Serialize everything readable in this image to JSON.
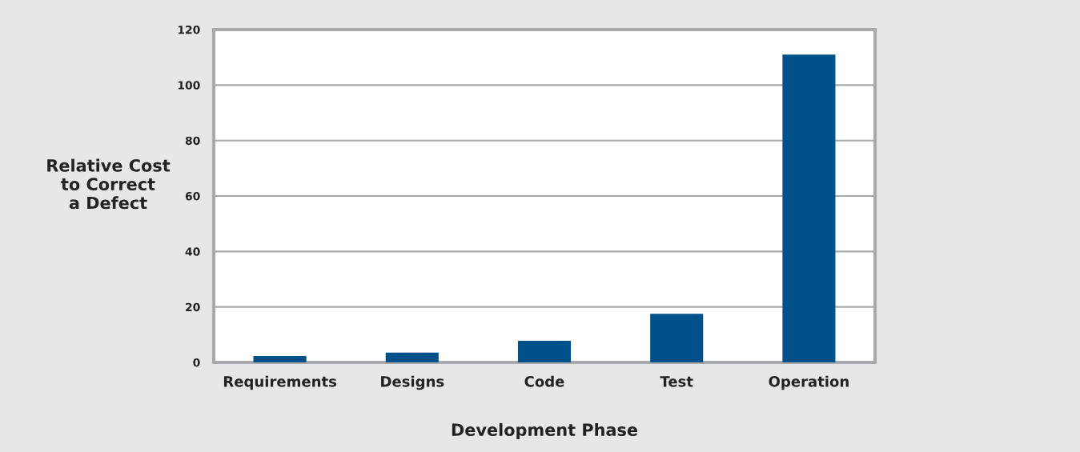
{
  "chart_data": {
    "type": "bar",
    "xlabel": "Development Phase",
    "ylabel": "Relative Cost\nto Correct\na Defect",
    "categories": [
      "Requirements",
      "Designs",
      "Code",
      "Test",
      "Operation"
    ],
    "values": [
      2.3,
      3.5,
      7.8,
      17.5,
      111
    ],
    "color": "#00508a",
    "ylim": [
      0,
      120
    ],
    "yticks": [
      0,
      20,
      40,
      60,
      80,
      100,
      120
    ],
    "grid": "y",
    "legend": false
  }
}
